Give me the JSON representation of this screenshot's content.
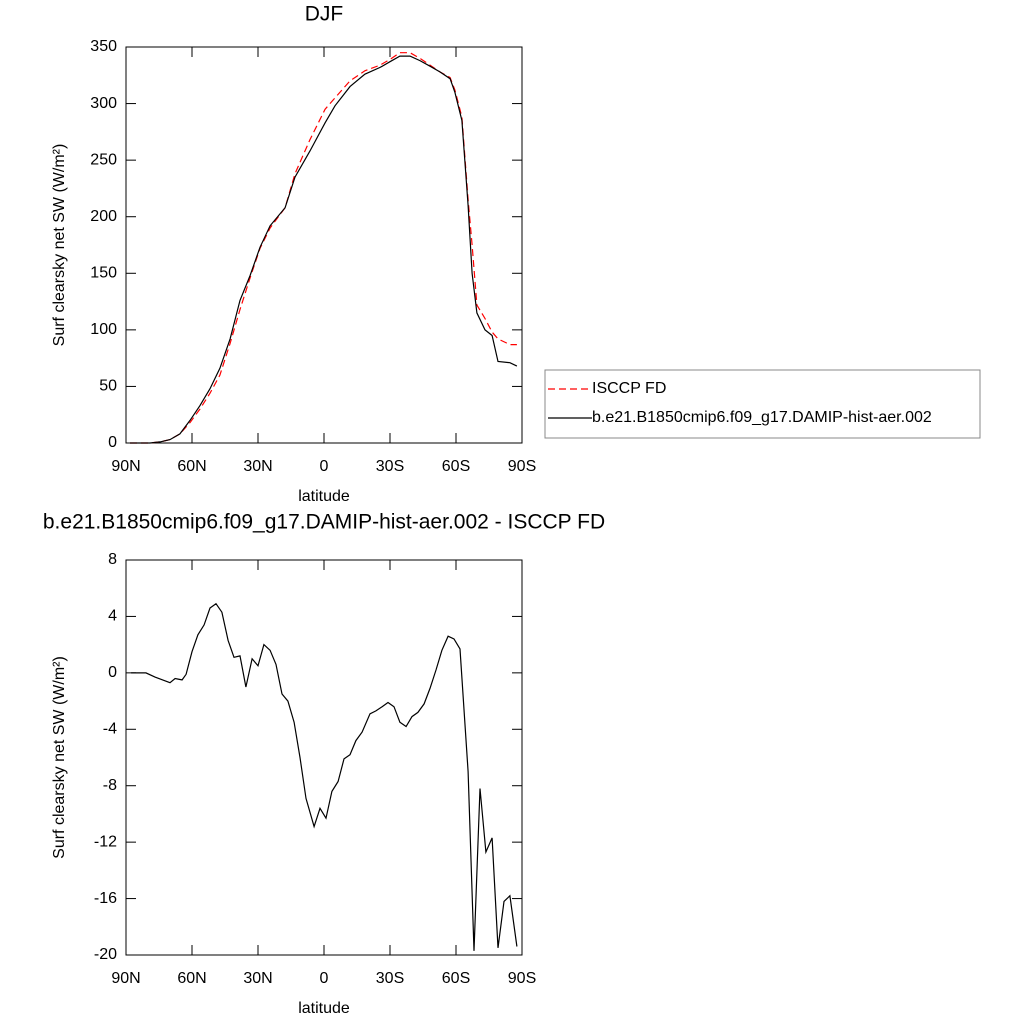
{
  "chart_data": [
    {
      "type": "line",
      "title": "DJF",
      "x_label": "latitude",
      "y_label": "Surf clearsky net SW (W/m²)",
      "x": [
        88.2,
        79.1,
        74.5,
        70.0,
        65.5,
        60.9,
        56.4,
        51.8,
        47.3,
        42.7,
        38.2,
        33.6,
        29.1,
        24.5,
        17.7,
        13.2,
        6.4,
        -0.5,
        -5.0,
        -11.8,
        -18.6,
        -25.5,
        -30.0,
        -34.5,
        -39.1,
        -43.6,
        -48.2,
        -52.7,
        -57.3,
        -59.5,
        -62.7,
        -65.5,
        -67.3,
        -69.5,
        -73.2,
        -76.4,
        -79.1,
        -84.5,
        -87.7
      ],
      "series": [
        {
          "name": "ISCCP FD",
          "color": "#ff0000",
          "dashed": true,
          "values": [
            0,
            0,
            1,
            3,
            8,
            18,
            30,
            44,
            60,
            88,
            118,
            146,
            172,
            190,
            208,
            238,
            268,
            295,
            305,
            320,
            329,
            334,
            339,
            345,
            345,
            340,
            334,
            328,
            323,
            312,
            288,
            215,
            175,
            122,
            110,
            98,
            92,
            87,
            87
          ]
        },
        {
          "name": "b.e21.B1850cmip6.f09_g17.DAMIP-hist-aer.002",
          "color": "#000000",
          "dashed": false,
          "values": [
            0,
            0,
            1,
            3,
            8,
            20,
            33,
            48,
            66,
            92,
            126,
            148,
            173,
            192,
            208,
            235,
            258,
            283,
            298,
            315,
            326,
            332,
            337,
            342,
            342,
            338,
            333,
            328,
            322,
            310,
            285,
            210,
            150,
            115,
            100,
            95,
            72,
            71,
            68
          ]
        }
      ],
      "xlim": [
        90,
        -90
      ],
      "xticks": [
        {
          "value": 90,
          "label": "90N"
        },
        {
          "value": 60,
          "label": "60N"
        },
        {
          "value": 30,
          "label": "30N"
        },
        0,
        {
          "value": -30,
          "label": "30S"
        },
        {
          "value": -60,
          "label": "60S"
        },
        {
          "value": -90,
          "label": "90S"
        }
      ],
      "ylim": [
        0,
        350
      ],
      "yticks": [
        0,
        50,
        100,
        150,
        200,
        250,
        300,
        350
      ],
      "legend": "right"
    },
    {
      "type": "line",
      "title": "b.e21.B1850cmip6.f09_g17.DAMIP-hist-aer.002 - ISCCP FD",
      "x_label": "latitude",
      "y_label": "Surf clearsky net SW (W/m²)",
      "x": [
        87.7,
        80.9,
        76.8,
        70.0,
        67.7,
        64.5,
        62.7,
        60.0,
        57.3,
        54.5,
        51.8,
        49.1,
        46.4,
        43.6,
        40.9,
        38.2,
        35.5,
        32.7,
        30.0,
        27.3,
        24.5,
        21.8,
        19.1,
        16.4,
        13.6,
        10.9,
        8.2,
        4.5,
        1.8,
        -0.9,
        -3.6,
        -6.4,
        -9.1,
        -11.8,
        -14.5,
        -17.3,
        -20.9,
        -23.6,
        -26.4,
        -29.1,
        -31.8,
        -34.5,
        -37.3,
        -40.0,
        -42.7,
        -45.5,
        -48.2,
        -50.9,
        -53.6,
        -56.4,
        -59.1,
        -61.8,
        -65.5,
        -68.2,
        -70.9,
        -73.6,
        -76.4,
        -79.1,
        -81.8,
        -84.5,
        -87.7
      ],
      "values": [
        0,
        0,
        -0.3,
        -0.7,
        -0.4,
        -0.5,
        -0.1,
        1.5,
        2.7,
        3.4,
        4.6,
        4.9,
        4.3,
        2.3,
        1.1,
        1.2,
        -1.0,
        1.0,
        0.5,
        2.0,
        1.6,
        0.6,
        -1.5,
        -2.0,
        -3.5,
        -6.0,
        -8.9,
        -10.9,
        -9.6,
        -10.3,
        -8.4,
        -7.7,
        -6.1,
        -5.8,
        -4.8,
        -4.2,
        -2.9,
        -2.7,
        -2.4,
        -2.1,
        -2.4,
        -3.5,
        -3.8,
        -3.1,
        -2.8,
        -2.2,
        -1.1,
        0.2,
        1.6,
        2.6,
        2.4,
        1.7,
        -7.0,
        -19.7,
        -8.2,
        -12.7,
        -11.7,
        -19.5,
        -16.2,
        -15.8,
        -19.4
      ],
      "color": "#000000",
      "xlim": [
        90,
        -90
      ],
      "xticks": [
        {
          "value": 90,
          "label": "90N"
        },
        {
          "value": 60,
          "label": "60N"
        },
        {
          "value": 30,
          "label": "30N"
        },
        0,
        {
          "value": -30,
          "label": "30S"
        },
        {
          "value": -60,
          "label": "60S"
        },
        {
          "value": -90,
          "label": "90S"
        }
      ],
      "ylim": [
        -20,
        8
      ],
      "yticks": [
        8,
        4,
        0,
        -4,
        -8,
        -12,
        -16,
        -20
      ]
    }
  ]
}
